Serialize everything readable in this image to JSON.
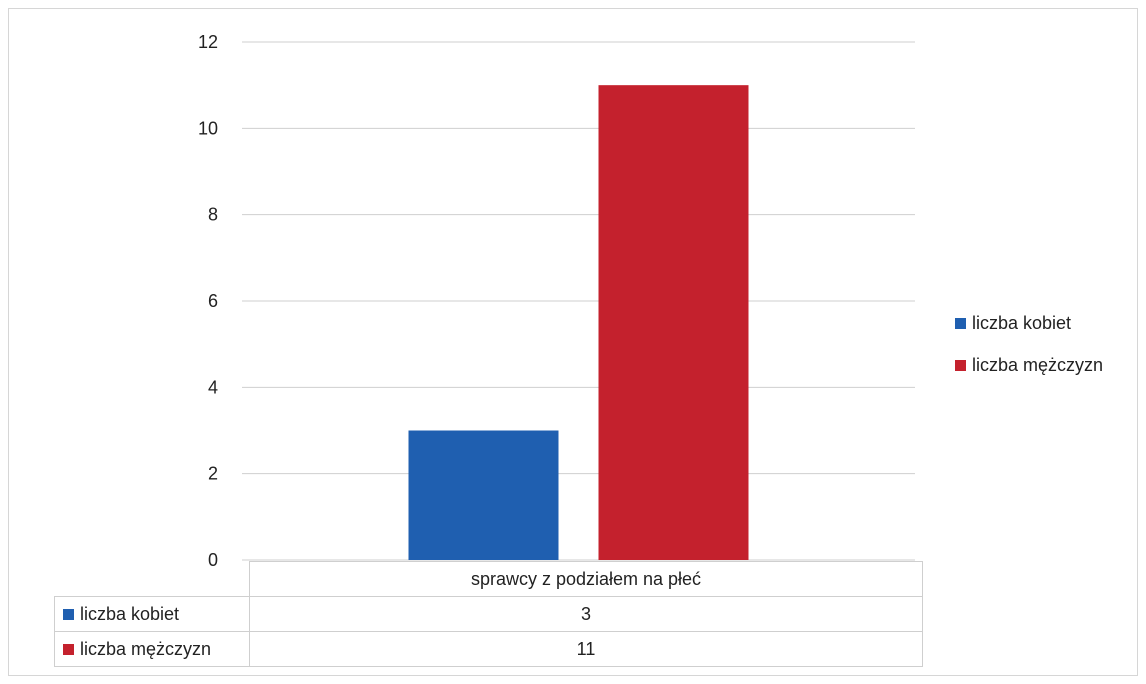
{
  "chart_data": {
    "type": "bar",
    "categories": [
      "sprawcy z podziałem na płeć"
    ],
    "series": [
      {
        "name": "liczba kobiet",
        "values": [
          3
        ],
        "color": "#1f5fb0"
      },
      {
        "name": "liczba mężczyzn",
        "values": [
          11
        ],
        "color": "#c4212d"
      }
    ],
    "ylim": [
      0,
      12
    ],
    "yticks": [
      "0",
      "2",
      "4",
      "6",
      "8",
      "10",
      "12"
    ],
    "grid": true,
    "legend": "right",
    "data_table": true,
    "table_rows": [
      {
        "label": "liczba kobiet",
        "value": "3"
      },
      {
        "label": "liczba mężczyzn",
        "value": "11"
      }
    ]
  }
}
